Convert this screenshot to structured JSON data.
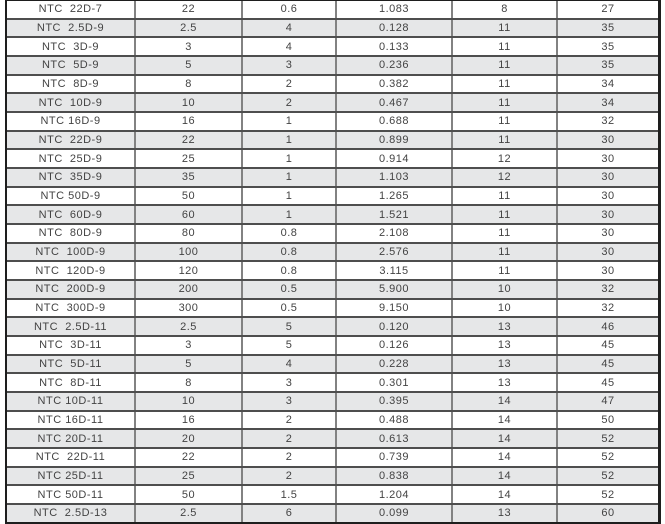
{
  "colors": {
    "page_bg": "#ffffff",
    "row_bg": "#ffffff",
    "row_alt_bg": "#e6e7e8",
    "border_outer": "#1e1e1e",
    "border_horizontal": "#4e4e4e",
    "border_vertical": "#828282",
    "text": "#434343"
  },
  "table": {
    "rows": [
      {
        "cells": [
          "NTC  22D-7",
          "22",
          "0.6",
          "1.083",
          "8",
          "27"
        ]
      },
      {
        "cells": [
          "NTC  2.5D-9",
          "2.5",
          "4",
          "0.128",
          "11",
          "35"
        ]
      },
      {
        "cells": [
          "NTC  3D-9",
          "3",
          "4",
          "0.133",
          "11",
          "35"
        ]
      },
      {
        "cells": [
          "NTC  5D-9",
          "5",
          "3",
          "0.236",
          "11",
          "35"
        ]
      },
      {
        "cells": [
          "NTC  8D-9",
          "8",
          "2",
          "0.382",
          "11",
          "34"
        ]
      },
      {
        "cells": [
          "NTC  10D-9",
          "10",
          "2",
          "0.467",
          "11",
          "34"
        ]
      },
      {
        "cells": [
          "NTC 16D-9",
          "16",
          "1",
          "0.688",
          "11",
          "32"
        ]
      },
      {
        "cells": [
          "NTC  22D-9",
          "22",
          "1",
          "0.899",
          "11",
          "30"
        ]
      },
      {
        "cells": [
          "NTC  25D-9",
          "25",
          "1",
          "0.914",
          "12",
          "30"
        ]
      },
      {
        "cells": [
          "NTC  35D-9",
          "35",
          "1",
          "1.103",
          "12",
          "30"
        ]
      },
      {
        "cells": [
          "NTC 50D-9",
          "50",
          "1",
          "1.265",
          "11",
          "30"
        ]
      },
      {
        "cells": [
          "NTC  60D-9",
          "60",
          "1",
          "1.521",
          "11",
          "30"
        ]
      },
      {
        "cells": [
          "NTC  80D-9",
          "80",
          "0.8",
          "2.108",
          "11",
          "30"
        ]
      },
      {
        "cells": [
          "NTC  100D-9",
          "100",
          "0.8",
          "2.576",
          "11",
          "30"
        ]
      },
      {
        "cells": [
          "NTC  120D-9",
          "120",
          "0.8",
          "3.115",
          "11",
          "30"
        ]
      },
      {
        "cells": [
          "NTC  200D-9",
          "200",
          "0.5",
          "5.900",
          "10",
          "32"
        ]
      },
      {
        "cells": [
          "NTC  300D-9",
          "300",
          "0.5",
          "9.150",
          "10",
          "32"
        ]
      },
      {
        "cells": [
          "NTC  2.5D-11",
          "2.5",
          "5",
          "0.120",
          "13",
          "46"
        ]
      },
      {
        "cells": [
          "NTC  3D-11",
          "3",
          "5",
          "0.126",
          "13",
          "45"
        ]
      },
      {
        "cells": [
          "NTC  5D-11",
          "5",
          "4",
          "0.228",
          "13",
          "45"
        ]
      },
      {
        "cells": [
          "NTC  8D-11",
          "8",
          "3",
          "0.301",
          "13",
          "45"
        ]
      },
      {
        "cells": [
          "NTC 10D-11",
          "10",
          "3",
          "0.395",
          "14",
          "47"
        ]
      },
      {
        "cells": [
          "NTC 16D-11",
          "16",
          "2",
          "0.488",
          "14",
          "50"
        ]
      },
      {
        "cells": [
          "NTC 20D-11",
          "20",
          "2",
          "0.613",
          "14",
          "52"
        ]
      },
      {
        "cells": [
          "NTC  22D-11",
          "22",
          "2",
          "0.739",
          "14",
          "52"
        ]
      },
      {
        "cells": [
          "NTC 25D-11",
          "25",
          "2",
          "0.838",
          "14",
          "52"
        ]
      },
      {
        "cells": [
          "NTC 50D-11",
          "50",
          "1.5",
          "1.204",
          "14",
          "52"
        ]
      },
      {
        "cells": [
          "NTC  2.5D-13",
          "2.5",
          "6",
          "0.099",
          "13",
          "60"
        ]
      }
    ]
  }
}
